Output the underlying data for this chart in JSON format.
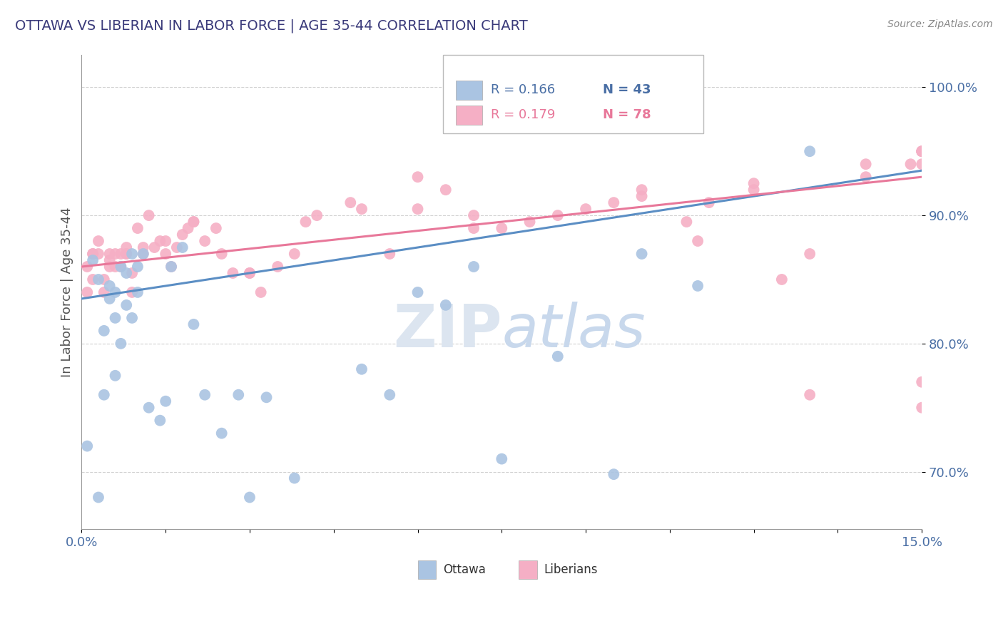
{
  "title": "OTTAWA VS LIBERIAN IN LABOR FORCE | AGE 35-44 CORRELATION CHART",
  "source_text": "Source: ZipAtlas.com",
  "ylabel": "In Labor Force | Age 35-44",
  "xlim": [
    0.0,
    0.15
  ],
  "ylim": [
    0.655,
    1.025
  ],
  "ytick_labels": [
    "70.0%",
    "80.0%",
    "90.0%",
    "100.0%"
  ],
  "ytick_values": [
    0.7,
    0.8,
    0.9,
    1.0
  ],
  "legend_ottawa": "Ottawa",
  "legend_liberians": "Liberians",
  "r_ottawa": "0.166",
  "n_ottawa": "43",
  "r_liberians": "0.179",
  "n_liberians": "78",
  "ottawa_color": "#aac4e2",
  "liberian_color": "#f5afc5",
  "ottawa_line_color": "#5b8ec4",
  "liberian_line_color": "#e8789a",
  "title_color": "#3a3a7a",
  "axis_label_color": "#4a6fa5",
  "tick_color": "#4a6fa5",
  "watermark_color": "#dce5f0",
  "background_color": "#ffffff",
  "source_color": "#888888",
  "ottawa_x": [
    0.001,
    0.002,
    0.003,
    0.004,
    0.005,
    0.005,
    0.006,
    0.006,
    0.007,
    0.007,
    0.008,
    0.008,
    0.009,
    0.01,
    0.01,
    0.011,
    0.012,
    0.014,
    0.016,
    0.018,
    0.02,
    0.025,
    0.028,
    0.033,
    0.038,
    0.05,
    0.055,
    0.065,
    0.075,
    0.085,
    0.095,
    0.1,
    0.11,
    0.13,
    0.003,
    0.004,
    0.006,
    0.009,
    0.015,
    0.022,
    0.03,
    0.06,
    0.07
  ],
  "ottawa_y": [
    0.72,
    0.865,
    0.85,
    0.81,
    0.835,
    0.845,
    0.84,
    0.82,
    0.8,
    0.86,
    0.855,
    0.83,
    0.87,
    0.86,
    0.84,
    0.87,
    0.75,
    0.74,
    0.86,
    0.875,
    0.815,
    0.73,
    0.76,
    0.758,
    0.695,
    0.78,
    0.76,
    0.83,
    0.71,
    0.79,
    0.698,
    0.87,
    0.845,
    0.95,
    0.68,
    0.76,
    0.775,
    0.82,
    0.755,
    0.76,
    0.68,
    0.84,
    0.86
  ],
  "liberian_x": [
    0.001,
    0.001,
    0.002,
    0.002,
    0.003,
    0.003,
    0.004,
    0.004,
    0.005,
    0.005,
    0.006,
    0.006,
    0.007,
    0.007,
    0.008,
    0.008,
    0.009,
    0.009,
    0.01,
    0.011,
    0.012,
    0.013,
    0.014,
    0.015,
    0.016,
    0.017,
    0.018,
    0.019,
    0.02,
    0.022,
    0.024,
    0.025,
    0.027,
    0.03,
    0.032,
    0.035,
    0.038,
    0.042,
    0.048,
    0.055,
    0.06,
    0.065,
    0.07,
    0.075,
    0.085,
    0.095,
    0.1,
    0.108,
    0.112,
    0.12,
    0.125,
    0.13,
    0.14,
    0.148,
    0.15,
    0.002,
    0.005,
    0.008,
    0.011,
    0.015,
    0.02,
    0.03,
    0.04,
    0.05,
    0.06,
    0.07,
    0.08,
    0.09,
    0.1,
    0.11,
    0.12,
    0.13,
    0.14,
    0.15,
    0.15,
    0.15,
    0.15,
    0.15
  ],
  "liberian_y": [
    0.86,
    0.84,
    0.87,
    0.85,
    0.87,
    0.88,
    0.84,
    0.85,
    0.86,
    0.87,
    0.86,
    0.87,
    0.87,
    0.86,
    0.87,
    0.875,
    0.84,
    0.855,
    0.89,
    0.87,
    0.9,
    0.875,
    0.88,
    0.87,
    0.86,
    0.875,
    0.885,
    0.89,
    0.895,
    0.88,
    0.89,
    0.87,
    0.855,
    0.855,
    0.84,
    0.86,
    0.87,
    0.9,
    0.91,
    0.87,
    0.93,
    0.92,
    0.9,
    0.89,
    0.9,
    0.91,
    0.915,
    0.895,
    0.91,
    0.925,
    0.85,
    0.76,
    0.93,
    0.94,
    0.95,
    0.87,
    0.865,
    0.87,
    0.875,
    0.88,
    0.895,
    0.855,
    0.895,
    0.905,
    0.905,
    0.89,
    0.895,
    0.905,
    0.92,
    0.88,
    0.92,
    0.87,
    0.94,
    0.94,
    0.95,
    0.95,
    0.75,
    0.77
  ]
}
